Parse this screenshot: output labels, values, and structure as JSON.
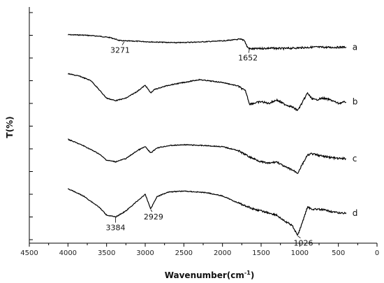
{
  "chart_data": {
    "type": "line",
    "xlabel": "Wavenumber(cm",
    "xlabel_sup": "-1",
    "xlabel_close": ")",
    "ylabel": "T(%)",
    "xlim": [
      4500,
      0
    ],
    "x_ticks": [
      "4500",
      "4000",
      "3500",
      "3000",
      "2500",
      "2000",
      "1500",
      "1000",
      "500",
      "0"
    ],
    "grid": false,
    "legend": "none",
    "line_color": "#000000",
    "series": [
      {
        "name": "a",
        "points": [
          [
            4000,
            0.18
          ],
          [
            3800,
            0.2
          ],
          [
            3600,
            0.26
          ],
          [
            3450,
            0.34
          ],
          [
            3330,
            0.5
          ],
          [
            3271,
            0.52
          ],
          [
            3100,
            0.54
          ],
          [
            2900,
            0.58
          ],
          [
            2600,
            0.62
          ],
          [
            2300,
            0.58
          ],
          [
            2000,
            0.52
          ],
          [
            1800,
            0.44
          ],
          [
            1720,
            0.46
          ],
          [
            1680,
            0.85
          ],
          [
            1652,
            0.95
          ],
          [
            1600,
            0.96
          ],
          [
            1400,
            0.92
          ],
          [
            1200,
            0.94
          ],
          [
            1000,
            0.9
          ],
          [
            800,
            0.86
          ],
          [
            600,
            0.88
          ],
          [
            400,
            0.86
          ]
        ]
      },
      {
        "name": "b",
        "points": [
          [
            4000,
            0.05
          ],
          [
            3850,
            0.12
          ],
          [
            3700,
            0.25
          ],
          [
            3600,
            0.5
          ],
          [
            3500,
            0.75
          ],
          [
            3384,
            0.82
          ],
          [
            3250,
            0.75
          ],
          [
            3100,
            0.55
          ],
          [
            3000,
            0.38
          ],
          [
            2929,
            0.6
          ],
          [
            2880,
            0.5
          ],
          [
            2700,
            0.38
          ],
          [
            2500,
            0.3
          ],
          [
            2300,
            0.22
          ],
          [
            2000,
            0.3
          ],
          [
            1800,
            0.4
          ],
          [
            1700,
            0.55
          ],
          [
            1650,
            0.92
          ],
          [
            1500,
            0.85
          ],
          [
            1400,
            0.9
          ],
          [
            1300,
            0.8
          ],
          [
            1200,
            0.92
          ],
          [
            1100,
            1.0
          ],
          [
            1026,
            1.1
          ],
          [
            960,
            0.85
          ],
          [
            900,
            0.6
          ],
          [
            850,
            0.75
          ],
          [
            800,
            0.8
          ],
          [
            700,
            0.75
          ],
          [
            600,
            0.8
          ],
          [
            500,
            0.9
          ],
          [
            400,
            0.85
          ]
        ]
      },
      {
        "name": "c",
        "points": [
          [
            4000,
            0.05
          ],
          [
            3800,
            0.25
          ],
          [
            3600,
            0.5
          ],
          [
            3500,
            0.7
          ],
          [
            3384,
            0.75
          ],
          [
            3250,
            0.65
          ],
          [
            3100,
            0.4
          ],
          [
            3000,
            0.28
          ],
          [
            2929,
            0.48
          ],
          [
            2850,
            0.32
          ],
          [
            2700,
            0.25
          ],
          [
            2500,
            0.22
          ],
          [
            2200,
            0.25
          ],
          [
            2000,
            0.28
          ],
          [
            1800,
            0.4
          ],
          [
            1650,
            0.6
          ],
          [
            1500,
            0.75
          ],
          [
            1400,
            0.8
          ],
          [
            1300,
            0.75
          ],
          [
            1200,
            0.9
          ],
          [
            1100,
            1.0
          ],
          [
            1026,
            1.1
          ],
          [
            960,
            0.8
          ],
          [
            900,
            0.55
          ],
          [
            850,
            0.5
          ],
          [
            700,
            0.58
          ],
          [
            500,
            0.65
          ],
          [
            400,
            0.65
          ]
        ]
      },
      {
        "name": "d",
        "points": [
          [
            4000,
            0.0
          ],
          [
            3800,
            0.18
          ],
          [
            3600,
            0.45
          ],
          [
            3500,
            0.65
          ],
          [
            3384,
            0.7
          ],
          [
            3250,
            0.55
          ],
          [
            3100,
            0.3
          ],
          [
            3000,
            0.14
          ],
          [
            2929,
            0.5
          ],
          [
            2850,
            0.2
          ],
          [
            2700,
            0.08
          ],
          [
            2500,
            0.06
          ],
          [
            2200,
            0.1
          ],
          [
            2000,
            0.18
          ],
          [
            1800,
            0.35
          ],
          [
            1600,
            0.5
          ],
          [
            1400,
            0.6
          ],
          [
            1300,
            0.65
          ],
          [
            1200,
            0.8
          ],
          [
            1100,
            0.9
          ],
          [
            1026,
            1.15
          ],
          [
            960,
            0.8
          ],
          [
            900,
            0.45
          ],
          [
            850,
            0.5
          ],
          [
            700,
            0.52
          ],
          [
            500,
            0.6
          ],
          [
            400,
            0.6
          ]
        ]
      }
    ],
    "annotations": [
      {
        "series": "a",
        "label": "3271",
        "x": 3271
      },
      {
        "series": "a",
        "label": "1652",
        "x": 1652
      },
      {
        "series": "d",
        "label": "3384",
        "x": 3384
      },
      {
        "series": "d",
        "label": "2929",
        "x": 2929
      },
      {
        "series": "d",
        "label": "1026",
        "x": 1026
      }
    ]
  }
}
